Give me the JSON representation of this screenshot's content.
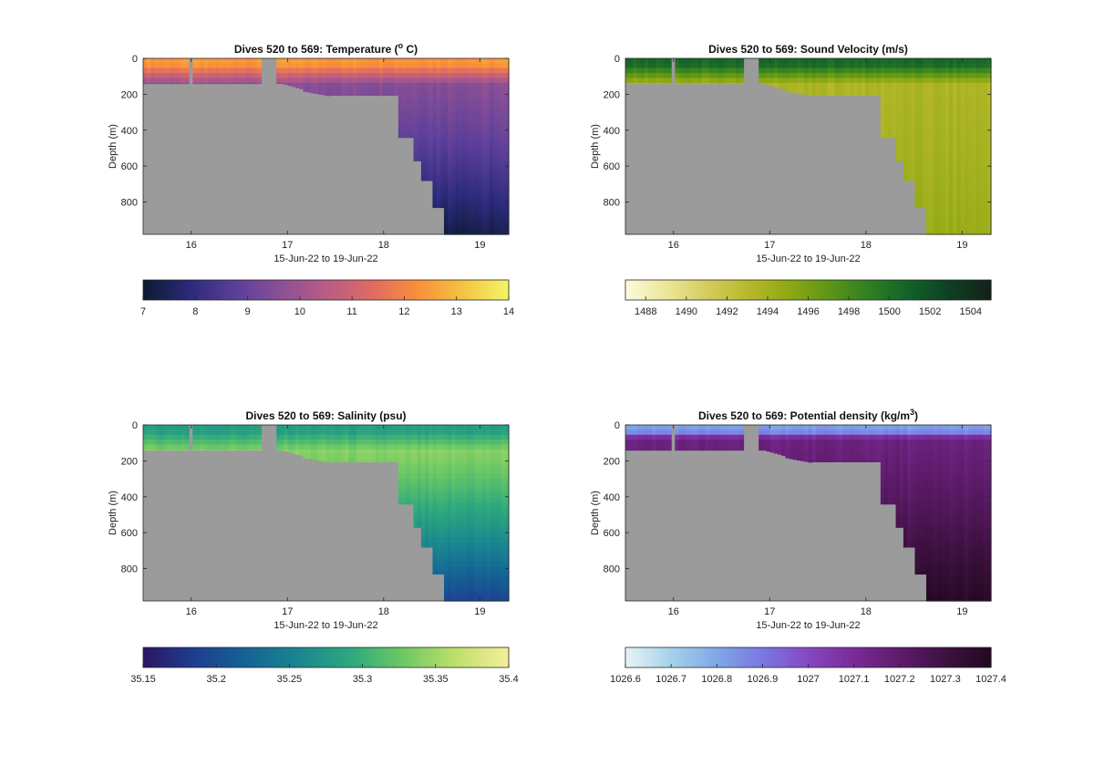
{
  "chart_data": [
    {
      "type": "heatmap",
      "title": "Dives 520 to 569: Temperature (",
      "title_sup": "o",
      "title_suffix": " C)",
      "xlabel": "15-Jun-22 to 19-Jun-22",
      "ylabel": "Depth (m)",
      "x_ticks": [
        "16",
        "17",
        "18",
        "19"
      ],
      "y_ticks": [
        "0",
        "200",
        "400",
        "600",
        "800"
      ],
      "xlim": [
        15.5,
        19.3
      ],
      "ylim": [
        0,
        980
      ],
      "colorbar": {
        "ticks": [
          "7",
          "8",
          "9",
          "10",
          "11",
          "12",
          "13",
          "14"
        ],
        "range": [
          7,
          14
        ],
        "colors": [
          "#0b1a2e",
          "#2b2a7a",
          "#5a3e9a",
          "#8a5096",
          "#b85c84",
          "#e06a63",
          "#f88f3a",
          "#f4c342",
          "#f2f566"
        ]
      },
      "profile": {
        "surface": 12.4,
        "mixed_depth": 130,
        "mid": 9.6,
        "deep": 7.3
      }
    },
    {
      "type": "heatmap",
      "title": "Dives 520 to 569: Sound Velocity (m/s)",
      "title_sup": "",
      "title_suffix": "",
      "xlabel": "15-Jun-22 to 19-Jun-22",
      "ylabel": "Depth (m)",
      "x_ticks": [
        "16",
        "17",
        "18",
        "19"
      ],
      "y_ticks": [
        "0",
        "200",
        "400",
        "600",
        "800"
      ],
      "xlim": [
        15.5,
        19.3
      ],
      "ylim": [
        0,
        980
      ],
      "colorbar": {
        "ticks": [
          "1488",
          "1490",
          "1492",
          "1494",
          "1496",
          "1498",
          "1500",
          "1502",
          "1504"
        ],
        "range": [
          1487,
          1505
        ],
        "colors": [
          "#fdfbdc",
          "#ece69a",
          "#d4cc60",
          "#b8b92c",
          "#8fa913",
          "#5e9617",
          "#2f7f22",
          "#11612a",
          "#0f3f22",
          "#12211a"
        ]
      },
      "profile": {
        "surface": 1500.5,
        "mixed_depth": 130,
        "mid": 1493.5,
        "deep": 1494.5
      }
    },
    {
      "type": "heatmap",
      "title": "Dives 520 to 569: Salinity (psu)",
      "title_sup": "",
      "title_suffix": "",
      "xlabel": "15-Jun-22 to 19-Jun-22",
      "ylabel": "Depth (m)",
      "x_ticks": [
        "16",
        "17",
        "18",
        "19"
      ],
      "y_ticks": [
        "0",
        "200",
        "400",
        "600",
        "800"
      ],
      "xlim": [
        15.5,
        19.3
      ],
      "ylim": [
        0,
        980
      ],
      "colorbar": {
        "ticks": [
          "35.15",
          "35.2",
          "35.25",
          "35.3",
          "35.35",
          "35.4"
        ],
        "range": [
          35.15,
          35.4
        ],
        "colors": [
          "#2a1763",
          "#1f3e91",
          "#146495",
          "#1b8790",
          "#2ea97c",
          "#6fc964",
          "#bfe06a",
          "#f6ee9c"
        ]
      },
      "profile": {
        "surface": 35.28,
        "mixed_depth": 130,
        "mid": 35.34,
        "deep": 35.19
      }
    },
    {
      "type": "heatmap",
      "title": "Dives 520 to 569: Potential density (kg/m",
      "title_sup": "3",
      "title_suffix": ")",
      "xlabel": "15-Jun-22 to 19-Jun-22",
      "ylabel": "Depth (m)",
      "x_ticks": [
        "16",
        "17",
        "18",
        "19"
      ],
      "y_ticks": [
        "0",
        "200",
        "400",
        "600",
        "800"
      ],
      "xlim": [
        15.5,
        19.3
      ],
      "ylim": [
        0,
        980
      ],
      "colorbar": {
        "ticks": [
          "1026.6",
          "1026.7",
          "1026.8",
          "1026.9",
          "1027",
          "1027.1",
          "1027.2",
          "1027.3",
          "1027.4"
        ],
        "range": [
          1026.6,
          1027.4
        ],
        "colors": [
          "#e8f4f4",
          "#a5d2ea",
          "#7ea8e8",
          "#7b77e2",
          "#8548c2",
          "#7b2b97",
          "#5e1b6a",
          "#3e1141",
          "#22081f"
        ]
      },
      "profile": {
        "surface": 1026.82,
        "mixed_depth": 70,
        "mid": 1027.15,
        "deep": 1027.38
      }
    }
  ]
}
